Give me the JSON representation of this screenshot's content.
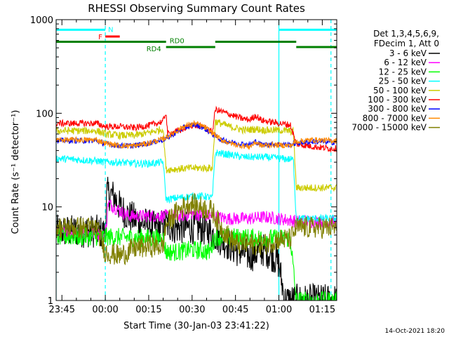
{
  "chart_data": {
    "type": "line",
    "title": "RHESSI Observing Summary Count Rates",
    "xlabel": "Start Time (30-Jan-03 23:41:22)",
    "ylabel": "Count Rate (s⁻¹ detector⁻¹)",
    "yscale": "log",
    "ylim": [
      1,
      1000
    ],
    "xlim_minutes": [
      -17,
      80
    ],
    "x_tick_labels": [
      "23:45",
      "00:00",
      "00:15",
      "00:30",
      "00:45",
      "01:00",
      "01:15"
    ],
    "x_tick_minutes": [
      -15,
      0,
      15,
      30,
      45,
      60,
      75
    ],
    "y_tick_labels": [
      "1",
      "10",
      "100",
      "1000"
    ],
    "y_tick_values": [
      1,
      10,
      100,
      1000
    ],
    "grid": false,
    "legend_position": "right",
    "legend_header": [
      "Det 1,3,4,5,6,9,",
      "FDecim 1, Att 0"
    ],
    "timestamp": "14-Oct-2021 18:20",
    "annotations": [
      {
        "label": "N",
        "x0": -17,
        "x1": 0,
        "level": 780,
        "color": "#00ffff"
      },
      {
        "label": "F",
        "x0": 0,
        "x1": 5,
        "level": 660,
        "color": "#ff0000"
      },
      {
        "label": "RD0",
        "x0": -17,
        "x1": 21,
        "level": 580,
        "color": "#008000"
      },
      {
        "label": "RD4",
        "x0": 21,
        "x1": 38,
        "level": 510,
        "color": "#008000"
      },
      {
        "label": "",
        "x0": 38,
        "x1": 66,
        "level": 580,
        "color": "#008000"
      },
      {
        "label": "",
        "x0": 66,
        "x1": 80,
        "level": 510,
        "color": "#008000"
      },
      {
        "label": "",
        "x0": 60,
        "x1": 80,
        "level": 780,
        "color": "#00ffff"
      }
    ],
    "vlines": [
      {
        "x": -17,
        "color": "#00ffff",
        "style": "solid"
      },
      {
        "x": 0,
        "color": "#00ffff",
        "style": "dashed"
      },
      {
        "x": 60,
        "color": "#00ffff",
        "style": "solid"
      },
      {
        "x": 78,
        "color": "#00ffff",
        "style": "dashed"
      }
    ],
    "series": [
      {
        "name": "3 - 6 keV",
        "color": "#000000",
        "noise": 0.18,
        "points": [
          [
            -17,
            5.5
          ],
          [
            -3,
            5.5
          ],
          [
            0,
            5.2
          ],
          [
            0.5,
            14
          ],
          [
            3,
            13
          ],
          [
            5,
            10
          ],
          [
            8,
            8
          ],
          [
            12,
            7
          ],
          [
            17,
            6
          ],
          [
            21,
            6.5
          ],
          [
            24,
            6
          ],
          [
            28,
            6
          ],
          [
            32,
            6
          ],
          [
            36,
            5.5
          ],
          [
            40,
            4.5
          ],
          [
            45,
            3.5
          ],
          [
            50,
            3
          ],
          [
            55,
            3.5
          ],
          [
            58,
            3
          ],
          [
            60,
            2.5
          ],
          [
            62,
            1.0
          ],
          [
            78,
            1.0
          ]
        ]
      },
      {
        "name": "6 - 12 keV",
        "color": "#ff00ff",
        "noise": 0.07,
        "points": [
          [
            -17,
            5.2
          ],
          [
            -3,
            5.2
          ],
          [
            0,
            5
          ],
          [
            1,
            11
          ],
          [
            4,
            9.5
          ],
          [
            8,
            8
          ],
          [
            15,
            8
          ],
          [
            21,
            8
          ],
          [
            26,
            8
          ],
          [
            30,
            8.5
          ],
          [
            36,
            8
          ],
          [
            42,
            7.5
          ],
          [
            50,
            7.5
          ],
          [
            55,
            7.8
          ],
          [
            60,
            7.5
          ],
          [
            66,
            7
          ],
          [
            70,
            7
          ],
          [
            78,
            7
          ]
        ]
      },
      {
        "name": "12 - 25 keV",
        "color": "#00ff00",
        "noise": 0.1,
        "points": [
          [
            -17,
            4.8
          ],
          [
            -3,
            4.8
          ],
          [
            0,
            4.8
          ],
          [
            20,
            4.6
          ],
          [
            21,
            3.3
          ],
          [
            25,
            3.3
          ],
          [
            30,
            3.5
          ],
          [
            36,
            3.3
          ],
          [
            38,
            4.8
          ],
          [
            50,
            4.7
          ],
          [
            60,
            4.6
          ],
          [
            64,
            4.6
          ],
          [
            66,
            1.0
          ],
          [
            78,
            1.0
          ]
        ]
      },
      {
        "name": "25 - 50 keV",
        "color": "#00ffff",
        "noise": 0.04,
        "points": [
          [
            -17,
            33
          ],
          [
            -3,
            31
          ],
          [
            0,
            30
          ],
          [
            5,
            30
          ],
          [
            10,
            29
          ],
          [
            15,
            29
          ],
          [
            20,
            30
          ],
          [
            21,
            12
          ],
          [
            25,
            12.5
          ],
          [
            30,
            13
          ],
          [
            34,
            13
          ],
          [
            37,
            12.5
          ],
          [
            38,
            38
          ],
          [
            43,
            36
          ],
          [
            48,
            34
          ],
          [
            55,
            34
          ],
          [
            60,
            33
          ],
          [
            65,
            32
          ],
          [
            66,
            7.5
          ],
          [
            72,
            7.5
          ],
          [
            78,
            7.5
          ]
        ]
      },
      {
        "name": "50 - 100 keV",
        "color": "#cccc00",
        "noise": 0.04,
        "points": [
          [
            -17,
            65
          ],
          [
            -3,
            65
          ],
          [
            0,
            60
          ],
          [
            5,
            58
          ],
          [
            10,
            58
          ],
          [
            15,
            62
          ],
          [
            20,
            68
          ],
          [
            21,
            25
          ],
          [
            30,
            26
          ],
          [
            37,
            26
          ],
          [
            38,
            82
          ],
          [
            43,
            72
          ],
          [
            48,
            66
          ],
          [
            52,
            68
          ],
          [
            55,
            66
          ],
          [
            60,
            66
          ],
          [
            65,
            64
          ],
          [
            66,
            16
          ],
          [
            78,
            16
          ]
        ]
      },
      {
        "name": "100 - 300 keV",
        "color": "#ff0000",
        "noise": 0.035,
        "points": [
          [
            -17,
            78
          ],
          [
            -3,
            78
          ],
          [
            0,
            72
          ],
          [
            5,
            72
          ],
          [
            10,
            70
          ],
          [
            15,
            74
          ],
          [
            20,
            82
          ],
          [
            21,
            104
          ],
          [
            21.5,
            60
          ],
          [
            26,
            66
          ],
          [
            30,
            75
          ],
          [
            34,
            72
          ],
          [
            37,
            62
          ],
          [
            38,
            110
          ],
          [
            42,
            100
          ],
          [
            47,
            88
          ],
          [
            50,
            85
          ],
          [
            52,
            95
          ],
          [
            54,
            84
          ],
          [
            58,
            80
          ],
          [
            64,
            75
          ],
          [
            66,
            47
          ],
          [
            72,
            44
          ],
          [
            78,
            42
          ]
        ]
      },
      {
        "name": "300 - 800 keV",
        "color": "#0000ff",
        "noise": 0.03,
        "points": [
          [
            -17,
            51
          ],
          [
            -3,
            51
          ],
          [
            0,
            47
          ],
          [
            5,
            45
          ],
          [
            10,
            45
          ],
          [
            15,
            48
          ],
          [
            20,
            52
          ],
          [
            23,
            58
          ],
          [
            27,
            70
          ],
          [
            31,
            76
          ],
          [
            34,
            70
          ],
          [
            37,
            60
          ],
          [
            40,
            52
          ],
          [
            45,
            48
          ],
          [
            50,
            46
          ],
          [
            52,
            50
          ],
          [
            54,
            46
          ],
          [
            58,
            47
          ],
          [
            64,
            46
          ],
          [
            66,
            48
          ],
          [
            72,
            50
          ],
          [
            78,
            49
          ]
        ]
      },
      {
        "name": "800 - 7000 keV",
        "color": "#ff8800",
        "noise": 0.03,
        "points": [
          [
            -17,
            52
          ],
          [
            -3,
            52
          ],
          [
            0,
            48
          ],
          [
            5,
            45
          ],
          [
            10,
            45
          ],
          [
            15,
            48
          ],
          [
            20,
            53
          ],
          [
            23,
            60
          ],
          [
            27,
            72
          ],
          [
            31,
            78
          ],
          [
            34,
            72
          ],
          [
            37,
            62
          ],
          [
            40,
            52
          ],
          [
            45,
            46
          ],
          [
            50,
            44
          ],
          [
            52,
            49
          ],
          [
            54,
            45
          ],
          [
            58,
            46
          ],
          [
            64,
            45
          ],
          [
            66,
            50
          ],
          [
            72,
            52
          ],
          [
            78,
            51
          ]
        ]
      },
      {
        "name": "7000 - 15000 keV",
        "color": "#808000",
        "noise": 0.12,
        "points": [
          [
            -17,
            6
          ],
          [
            -3,
            6
          ],
          [
            0,
            3.3
          ],
          [
            5,
            3
          ],
          [
            10,
            3.6
          ],
          [
            15,
            3.8
          ],
          [
            20,
            3.8
          ],
          [
            21,
            6.5
          ],
          [
            25,
            9
          ],
          [
            29,
            11
          ],
          [
            33,
            10
          ],
          [
            37,
            9
          ],
          [
            40,
            6
          ],
          [
            45,
            4
          ],
          [
            50,
            4
          ],
          [
            55,
            4
          ],
          [
            60,
            4.5
          ],
          [
            64,
            4.5
          ],
          [
            66,
            6
          ],
          [
            72,
            6
          ],
          [
            78,
            6
          ]
        ]
      }
    ]
  }
}
